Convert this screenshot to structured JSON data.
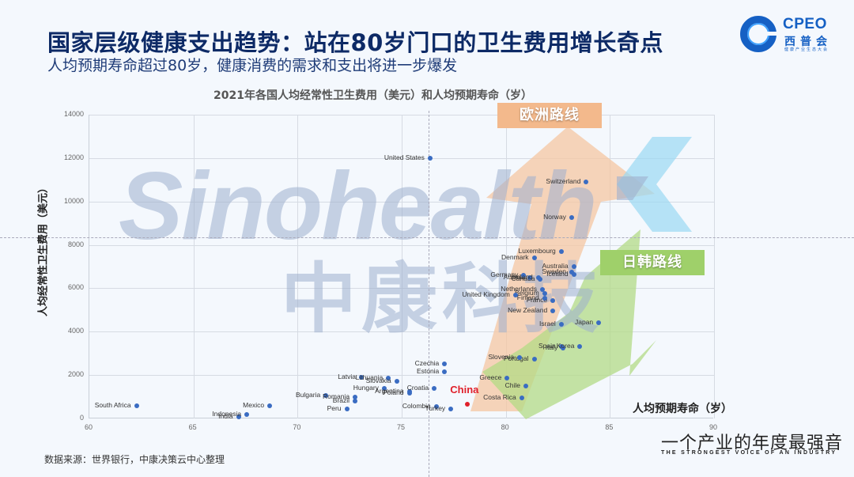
{
  "header": {
    "title": "国家层级健康支出趋势：站在80岁门口的卫生费用增长奇点",
    "subtitle": "人均预期寿命超过80岁，健康消费的需求和支出将进一步爆发"
  },
  "logo": {
    "en": "CPEO",
    "cn": "西普会",
    "small": "健康产业生态大会"
  },
  "watermark": {
    "en": "Sinohealth",
    "cn": "中康科技"
  },
  "routes": {
    "europe": "欧洲路线",
    "japan_korea": "日韩路线"
  },
  "footer": {
    "source": "数据来源：世界银行，中康决策云中心整理",
    "slogan_cn": "一个产业的年度最强音",
    "slogan_en": "THE STRONGEST VOICE OF AN INDUSTRY"
  },
  "colors": {
    "title": "#0d2a66",
    "dot": "#3a6cc2",
    "china": "#e0202a",
    "europe_route": "#f3b98c",
    "japan_korea_route": "#9fd06a"
  },
  "chart_data": {
    "type": "scatter",
    "title": "2021年各国人均经常性卫生费用（美元）和人均预期寿命（岁）",
    "xlabel": "人均预期寿命（岁）",
    "ylabel": "人均经常性卫生费用（美元）",
    "xlim": [
      60,
      90
    ],
    "ylim": [
      0,
      14000
    ],
    "xticks": [
      "60",
      "65",
      "70",
      "75",
      "80",
      "85",
      "90"
    ],
    "yticks": [
      "0",
      "2000",
      "4000",
      "6000",
      "8000",
      "10000",
      "12000",
      "14000"
    ],
    "grid": true,
    "highlight": "China",
    "points": [
      {
        "name": "South Africa",
        "x": 62.3,
        "y": 600
      },
      {
        "name": "India",
        "x": 67.2,
        "y": 80
      },
      {
        "name": "Indonesia",
        "x": 67.6,
        "y": 180
      },
      {
        "name": "Mexico",
        "x": 68.7,
        "y": 600
      },
      {
        "name": "Bulgaria",
        "x": 71.4,
        "y": 1050
      },
      {
        "name": "Peru",
        "x": 72.4,
        "y": 450
      },
      {
        "name": "Brazil",
        "x": 72.8,
        "y": 800
      },
      {
        "name": "Romania",
        "x": 72.8,
        "y": 1000
      },
      {
        "name": "Latvia",
        "x": 73.1,
        "y": 1900
      },
      {
        "name": "Hungary",
        "x": 74.2,
        "y": 1400
      },
      {
        "name": "Lithuania",
        "x": 74.4,
        "y": 1850
      },
      {
        "name": "Slovakia",
        "x": 74.8,
        "y": 1700
      },
      {
        "name": "Poland",
        "x": 75.4,
        "y": 1150
      },
      {
        "name": "Argentina",
        "x": 75.4,
        "y": 1250
      },
      {
        "name": "Croatia",
        "x": 76.6,
        "y": 1400
      },
      {
        "name": "Czechia",
        "x": 77.1,
        "y": 2500
      },
      {
        "name": "Estonia",
        "x": 77.1,
        "y": 2150
      },
      {
        "name": "Colombia",
        "x": 76.7,
        "y": 550
      },
      {
        "name": "Turkey",
        "x": 77.4,
        "y": 450
      },
      {
        "name": "China",
        "x": 78.2,
        "y": 670
      },
      {
        "name": "Greece",
        "x": 80.1,
        "y": 1850
      },
      {
        "name": "Chile",
        "x": 81.0,
        "y": 1500
      },
      {
        "name": "Costa Rica",
        "x": 80.8,
        "y": 950
      },
      {
        "name": "Portugal",
        "x": 81.4,
        "y": 2750
      },
      {
        "name": "Slovenia",
        "x": 80.7,
        "y": 2800
      },
      {
        "name": "Spain",
        "x": 82.7,
        "y": 3300
      },
      {
        "name": "Italy",
        "x": 82.8,
        "y": 3250
      },
      {
        "name": "Korea",
        "x": 83.6,
        "y": 3300
      },
      {
        "name": "Israel",
        "x": 82.7,
        "y": 4350
      },
      {
        "name": "Japan",
        "x": 84.5,
        "y": 4400
      },
      {
        "name": "New Zealand",
        "x": 82.3,
        "y": 4950
      },
      {
        "name": "France",
        "x": 82.3,
        "y": 5450
      },
      {
        "name": "Finland",
        "x": 81.9,
        "y": 5550
      },
      {
        "name": "Belgium",
        "x": 81.9,
        "y": 5750
      },
      {
        "name": "United Kingdom",
        "x": 80.5,
        "y": 5700
      },
      {
        "name": "Netherlands",
        "x": 81.8,
        "y": 5950
      },
      {
        "name": "Canada",
        "x": 81.7,
        "y": 6400
      },
      {
        "name": "Austria",
        "x": 81.2,
        "y": 6500
      },
      {
        "name": "Germany",
        "x": 80.9,
        "y": 6600
      },
      {
        "name": "Ireland",
        "x": 81.6,
        "y": 6500
      },
      {
        "name": "Sweden",
        "x": 83.2,
        "y": 6750
      },
      {
        "name": "Iceland",
        "x": 83.3,
        "y": 6650
      },
      {
        "name": "Australia",
        "x": 83.3,
        "y": 7000
      },
      {
        "name": "Denmark",
        "x": 81.4,
        "y": 7400
      },
      {
        "name": "Luxembourg",
        "x": 82.7,
        "y": 7700
      },
      {
        "name": "Norway",
        "x": 83.2,
        "y": 9250
      },
      {
        "name": "Switzerland",
        "x": 83.9,
        "y": 10900
      },
      {
        "name": "United States",
        "x": 76.4,
        "y": 12000
      }
    ]
  }
}
